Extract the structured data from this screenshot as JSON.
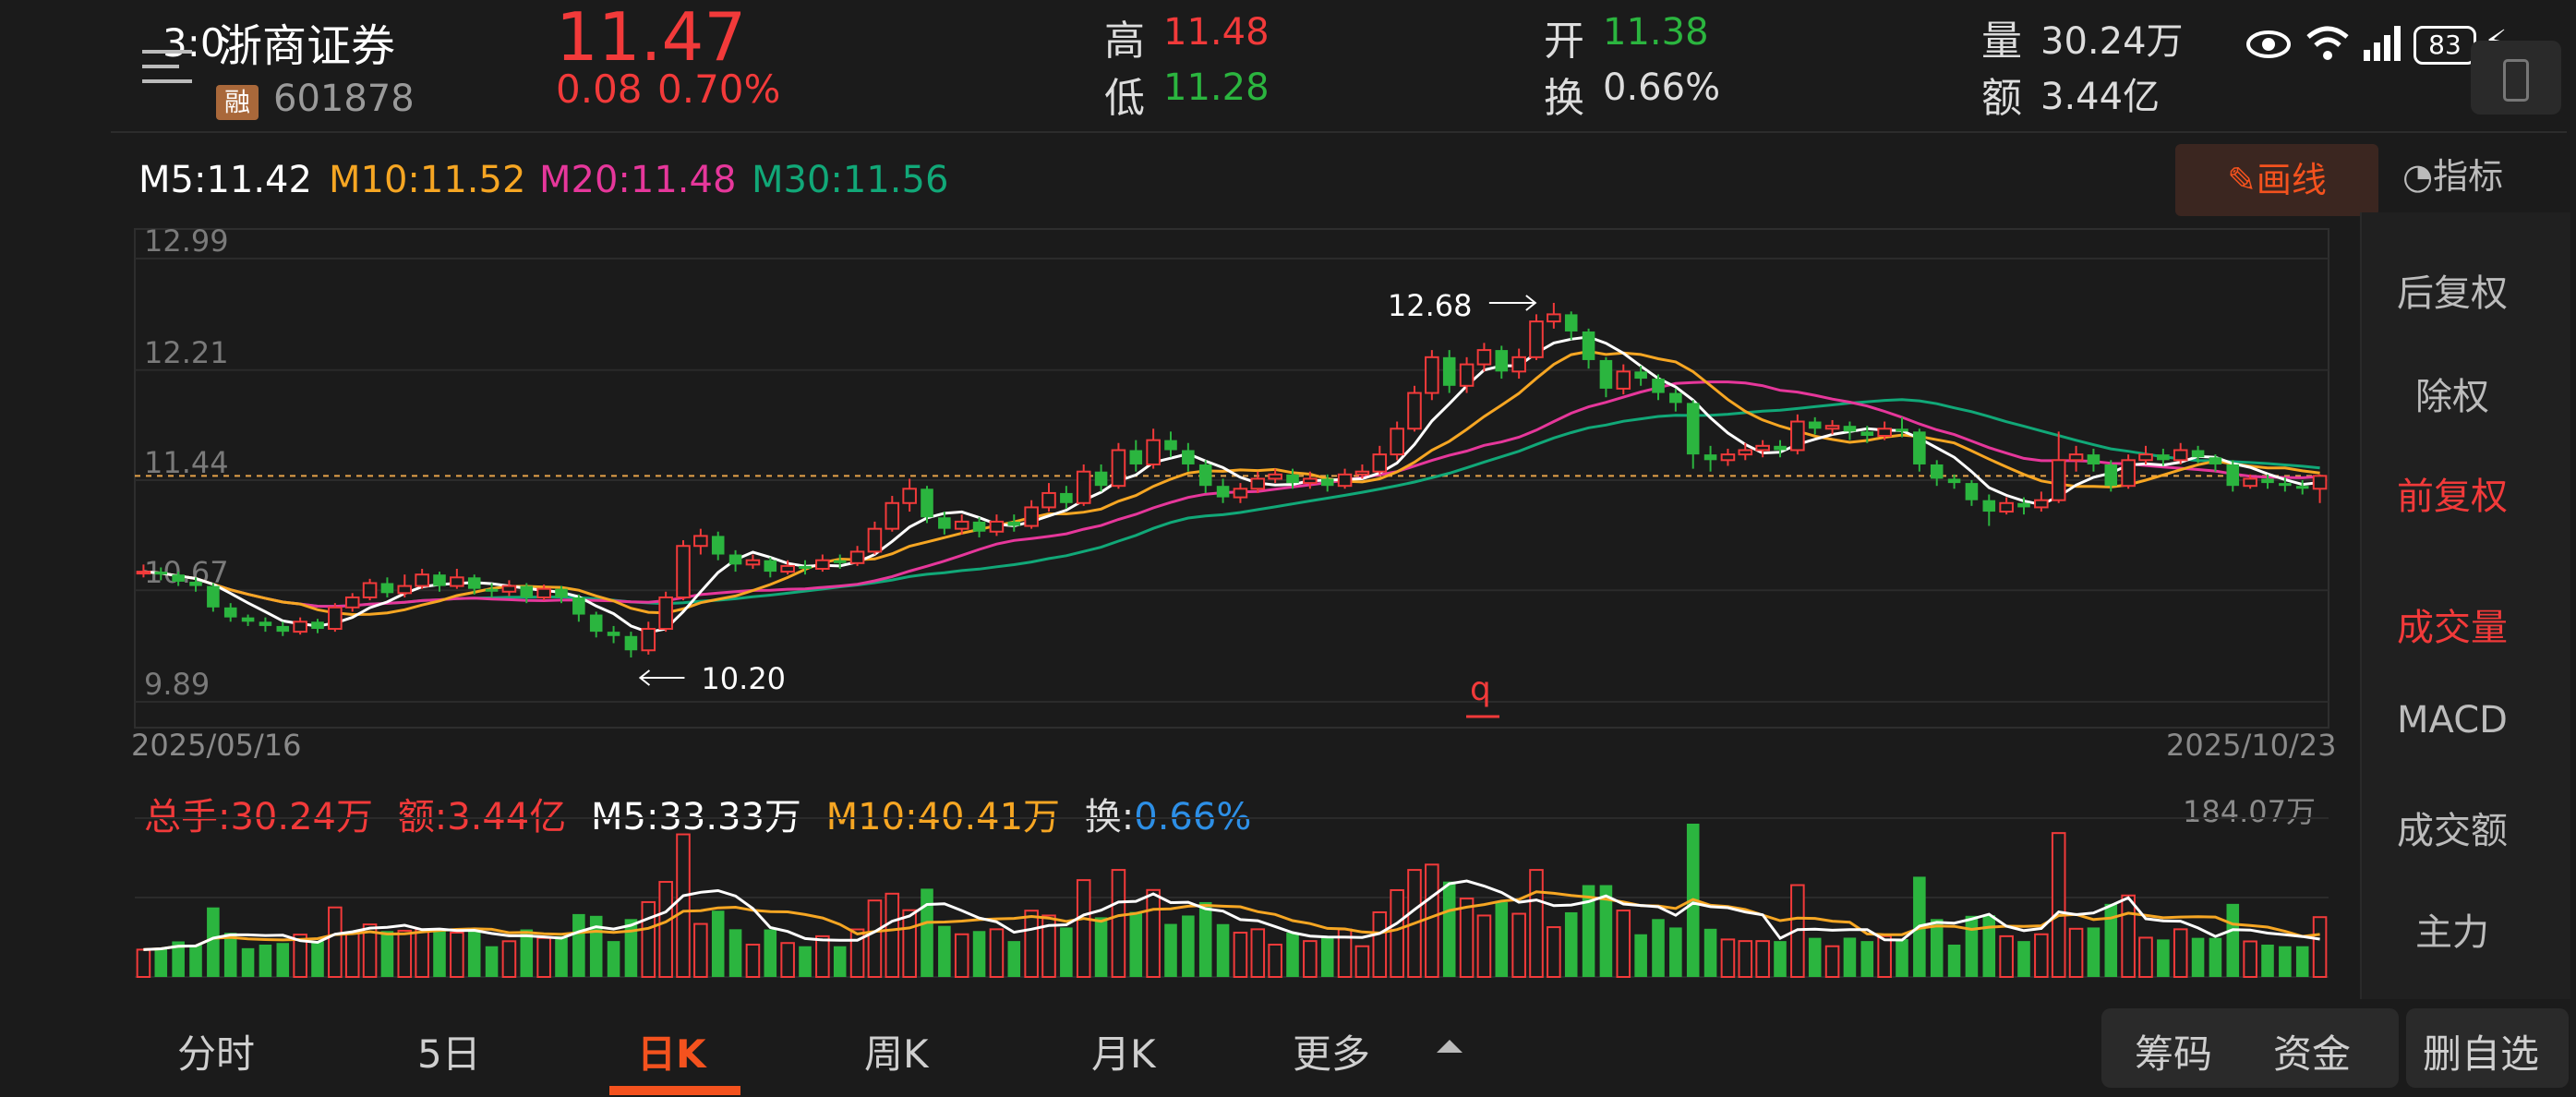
{
  "status": {
    "time": "3:0",
    "battery": "83"
  },
  "header": {
    "name": "浙商证券",
    "code": "601878",
    "margin_tag": "融",
    "price": "11.47",
    "change": "0.08",
    "change_pct": "0.70%",
    "high_label": "高",
    "high": "11.48",
    "low_label": "低",
    "low": "11.28",
    "open_label": "开",
    "open": "11.38",
    "turnover_label": "换",
    "turnover": "0.66%",
    "volume_label": "量",
    "volume": "30.24万",
    "amount_label": "额",
    "amount": "3.44亿"
  },
  "ma": {
    "m5": "M5:11.42",
    "m10": "M10:11.52",
    "m20": "M20:11.48",
    "m30": "M30:11.56"
  },
  "draw_button": "画线",
  "indicator_button": "指标",
  "side_menu": [
    {
      "label": "后复权",
      "active": false
    },
    {
      "label": "除权",
      "active": false
    },
    {
      "label": "前复权",
      "active": true
    },
    {
      "label": "成交量",
      "active": true
    },
    {
      "label": "MACD",
      "active": false
    },
    {
      "label": "成交额",
      "active": false
    },
    {
      "label": "主力",
      "active": false
    }
  ],
  "chart": {
    "y_ticks": [
      "12.99",
      "12.21",
      "11.44",
      "10.67",
      "9.89"
    ],
    "date_start": "2025/05/16",
    "date_end": "2025/10/23",
    "high_mark": "12.68",
    "low_mark": "10.20",
    "q_mark": "q"
  },
  "volume_panel": {
    "total": "总手:30.24万",
    "amount": "额:3.44亿",
    "m5": "M5:33.33万",
    "m10": "M10:40.41万",
    "turnover_label": "换:",
    "turnover_value": "0.66%",
    "max": "184.07万"
  },
  "tabs": [
    "分时",
    "5日",
    "日K",
    "周K",
    "月K",
    "更多"
  ],
  "active_tab": "日K",
  "bottom_buttons": [
    "筹码",
    "资金",
    "删自选"
  ],
  "colors": {
    "up": "#f23a3a",
    "down": "#2bb53f",
    "m5": "#ffffff",
    "m10": "#f6a623",
    "m20": "#e6379b",
    "m30": "#11a878",
    "accent": "#f4521e"
  },
  "chart_data": {
    "type": "candlestick",
    "x_range": [
      "2025/05/16",
      "2025/10/23"
    ],
    "ylim": [
      9.89,
      12.99
    ],
    "candles": [
      [
        10.79,
        10.8,
        10.85,
        10.76
      ],
      [
        10.8,
        10.78,
        10.83,
        10.74
      ],
      [
        10.78,
        10.73,
        10.8,
        10.7
      ],
      [
        10.73,
        10.7,
        10.76,
        10.66
      ],
      [
        10.7,
        10.55,
        10.72,
        10.52
      ],
      [
        10.55,
        10.48,
        10.58,
        10.45
      ],
      [
        10.48,
        10.45,
        10.5,
        10.42
      ],
      [
        10.45,
        10.42,
        10.48,
        10.38
      ],
      [
        10.42,
        10.38,
        10.45,
        10.35
      ],
      [
        10.38,
        10.45,
        10.48,
        10.36
      ],
      [
        10.45,
        10.4,
        10.47,
        10.37
      ],
      [
        10.4,
        10.55,
        10.58,
        10.38
      ],
      [
        10.55,
        10.62,
        10.65,
        10.52
      ],
      [
        10.62,
        10.72,
        10.75,
        10.6
      ],
      [
        10.72,
        10.65,
        10.76,
        10.62
      ],
      [
        10.65,
        10.7,
        10.78,
        10.62
      ],
      [
        10.7,
        10.78,
        10.82,
        10.68
      ],
      [
        10.78,
        10.7,
        10.8,
        10.66
      ],
      [
        10.7,
        10.76,
        10.82,
        10.68
      ],
      [
        10.76,
        10.68,
        10.78,
        10.64
      ],
      [
        10.68,
        10.66,
        10.72,
        10.62
      ],
      [
        10.66,
        10.7,
        10.74,
        10.63
      ],
      [
        10.7,
        10.62,
        10.72,
        10.58
      ],
      [
        10.62,
        10.68,
        10.71,
        10.6
      ],
      [
        10.68,
        10.62,
        10.7,
        10.58
      ],
      [
        10.62,
        10.5,
        10.64,
        10.45
      ],
      [
        10.5,
        10.38,
        10.52,
        10.34
      ],
      [
        10.38,
        10.35,
        10.42,
        10.3
      ],
      [
        10.35,
        10.25,
        10.38,
        10.2
      ],
      [
        10.25,
        10.4,
        10.45,
        10.22
      ],
      [
        10.4,
        10.62,
        10.66,
        10.38
      ],
      [
        10.62,
        10.98,
        11.02,
        10.6
      ],
      [
        10.98,
        11.05,
        11.1,
        10.92
      ],
      [
        11.05,
        10.92,
        11.08,
        10.88
      ],
      [
        10.92,
        10.85,
        10.95,
        10.8
      ],
      [
        10.85,
        10.88,
        10.92,
        10.82
      ],
      [
        10.88,
        10.8,
        10.9,
        10.76
      ],
      [
        10.8,
        10.84,
        10.88,
        10.78
      ],
      [
        10.84,
        10.82,
        10.88,
        10.78
      ],
      [
        10.82,
        10.88,
        10.92,
        10.8
      ],
      [
        10.88,
        10.86,
        10.92,
        10.82
      ],
      [
        10.86,
        10.94,
        10.98,
        10.84
      ],
      [
        10.94,
        11.1,
        11.15,
        10.92
      ],
      [
        11.1,
        11.28,
        11.33,
        11.08
      ],
      [
        11.28,
        11.38,
        11.45,
        11.22
      ],
      [
        11.38,
        11.18,
        11.4,
        11.14
      ],
      [
        11.18,
        11.1,
        11.22,
        11.06
      ],
      [
        11.1,
        11.15,
        11.2,
        11.06
      ],
      [
        11.15,
        11.08,
        11.18,
        11.04
      ],
      [
        11.08,
        11.15,
        11.2,
        11.05
      ],
      [
        11.15,
        11.12,
        11.2,
        11.08
      ],
      [
        11.12,
        11.25,
        11.3,
        11.1
      ],
      [
        11.25,
        11.35,
        11.42,
        11.22
      ],
      [
        11.35,
        11.28,
        11.4,
        11.24
      ],
      [
        11.28,
        11.5,
        11.55,
        11.26
      ],
      [
        11.5,
        11.4,
        11.55,
        11.36
      ],
      [
        11.4,
        11.65,
        11.7,
        11.38
      ],
      [
        11.65,
        11.55,
        11.72,
        11.5
      ],
      [
        11.55,
        11.72,
        11.8,
        11.52
      ],
      [
        11.72,
        11.65,
        11.78,
        11.6
      ],
      [
        11.65,
        11.55,
        11.7,
        11.5
      ],
      [
        11.55,
        11.4,
        11.58,
        11.35
      ],
      [
        11.4,
        11.32,
        11.45,
        11.28
      ],
      [
        11.32,
        11.38,
        11.42,
        11.28
      ],
      [
        11.38,
        11.45,
        11.5,
        11.35
      ],
      [
        11.45,
        11.48,
        11.52,
        11.42
      ],
      [
        11.48,
        11.42,
        11.52,
        11.38
      ],
      [
        11.42,
        11.45,
        11.5,
        11.38
      ],
      [
        11.45,
        11.4,
        11.48,
        11.36
      ],
      [
        11.4,
        11.48,
        11.52,
        11.38
      ],
      [
        11.48,
        11.5,
        11.55,
        11.45
      ],
      [
        11.5,
        11.62,
        11.68,
        11.48
      ],
      [
        11.62,
        11.8,
        11.85,
        11.58
      ],
      [
        11.8,
        12.05,
        12.1,
        11.78
      ],
      [
        12.05,
        12.3,
        12.35,
        12.0
      ],
      [
        12.3,
        12.1,
        12.35,
        12.05
      ],
      [
        12.1,
        12.25,
        12.3,
        12.05
      ],
      [
        12.25,
        12.35,
        12.4,
        12.2
      ],
      [
        12.35,
        12.2,
        12.38,
        12.15
      ],
      [
        12.2,
        12.3,
        12.36,
        12.15
      ],
      [
        12.3,
        12.55,
        12.6,
        12.28
      ],
      [
        12.55,
        12.6,
        12.68,
        12.5
      ],
      [
        12.6,
        12.48,
        12.62,
        12.42
      ],
      [
        12.48,
        12.28,
        12.5,
        12.22
      ],
      [
        12.28,
        12.08,
        12.3,
        12.02
      ],
      [
        12.08,
        12.2,
        12.25,
        12.04
      ],
      [
        12.2,
        12.15,
        12.24,
        12.1
      ],
      [
        12.15,
        12.05,
        12.18,
        12.0
      ],
      [
        12.05,
        11.98,
        12.08,
        11.92
      ],
      [
        11.98,
        11.62,
        12.0,
        11.52
      ],
      [
        11.62,
        11.58,
        11.68,
        11.5
      ],
      [
        11.58,
        11.62,
        11.66,
        11.54
      ],
      [
        11.62,
        11.65,
        11.7,
        11.58
      ],
      [
        11.65,
        11.68,
        11.72,
        11.6
      ],
      [
        11.68,
        11.65,
        11.72,
        11.6
      ],
      [
        11.65,
        11.85,
        11.9,
        11.62
      ],
      [
        11.85,
        11.8,
        11.88,
        11.76
      ],
      [
        11.8,
        11.82,
        11.86,
        11.76
      ],
      [
        11.82,
        11.78,
        11.85,
        11.72
      ],
      [
        11.78,
        11.75,
        11.82,
        11.7
      ],
      [
        11.75,
        11.8,
        11.85,
        11.72
      ],
      [
        11.8,
        11.78,
        11.88,
        11.74
      ],
      [
        11.78,
        11.55,
        11.8,
        11.5
      ],
      [
        11.55,
        11.45,
        11.58,
        11.4
      ],
      [
        11.45,
        11.42,
        11.48,
        11.38
      ],
      [
        11.42,
        11.3,
        11.44,
        11.26
      ],
      [
        11.3,
        11.22,
        11.34,
        11.12
      ],
      [
        11.22,
        11.28,
        11.32,
        11.2
      ],
      [
        11.28,
        11.25,
        11.32,
        11.2
      ],
      [
        11.25,
        11.3,
        11.36,
        11.22
      ],
      [
        11.3,
        11.58,
        11.78,
        11.28
      ],
      [
        11.58,
        11.62,
        11.68,
        11.5
      ],
      [
        11.62,
        11.55,
        11.66,
        11.5
      ],
      [
        11.55,
        11.4,
        11.58,
        11.36
      ],
      [
        11.4,
        11.58,
        11.62,
        11.38
      ],
      [
        11.58,
        11.62,
        11.68,
        11.55
      ],
      [
        11.62,
        11.58,
        11.66,
        11.54
      ],
      [
        11.58,
        11.65,
        11.7,
        11.55
      ],
      [
        11.65,
        11.6,
        11.68,
        11.56
      ],
      [
        11.6,
        11.55,
        11.62,
        11.5
      ],
      [
        11.55,
        11.4,
        11.58,
        11.36
      ],
      [
        11.4,
        11.45,
        11.48,
        11.38
      ],
      [
        11.45,
        11.42,
        11.48,
        11.38
      ],
      [
        11.42,
        11.4,
        11.46,
        11.36
      ],
      [
        11.4,
        11.38,
        11.44,
        11.34
      ],
      [
        11.38,
        11.47,
        11.48,
        11.28
      ]
    ]
  }
}
